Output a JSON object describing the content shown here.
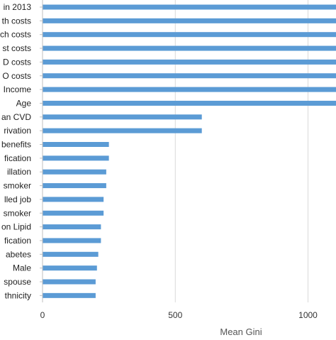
{
  "chart_data": {
    "type": "bar",
    "orientation": "horizontal",
    "categories": [
      "in 2013",
      "th costs",
      "ch costs",
      "st costs",
      "D costs",
      "O costs",
      "Income",
      "Age",
      "an CVD",
      "rivation",
      "benefits",
      "fication",
      "illation",
      "smoker",
      "lled job",
      "smoker",
      "on Lipid",
      "fication",
      "abetes",
      "Male",
      "spouse",
      "thnicity"
    ],
    "values": [
      2200,
      2210,
      2000,
      1700,
      1670,
      1650,
      1300,
      1250,
      600,
      600,
      250,
      250,
      240,
      240,
      230,
      230,
      220,
      220,
      210,
      205,
      200,
      200
    ],
    "xlabel": "Mean Gini",
    "ylabel": "",
    "xlim": [
      0,
      2200
    ],
    "xticks": [
      0,
      500,
      1000,
      1500,
      2000
    ],
    "grid": true,
    "bar_color": "#5b9bd5",
    "grid_color": "#d9d9d9"
  }
}
